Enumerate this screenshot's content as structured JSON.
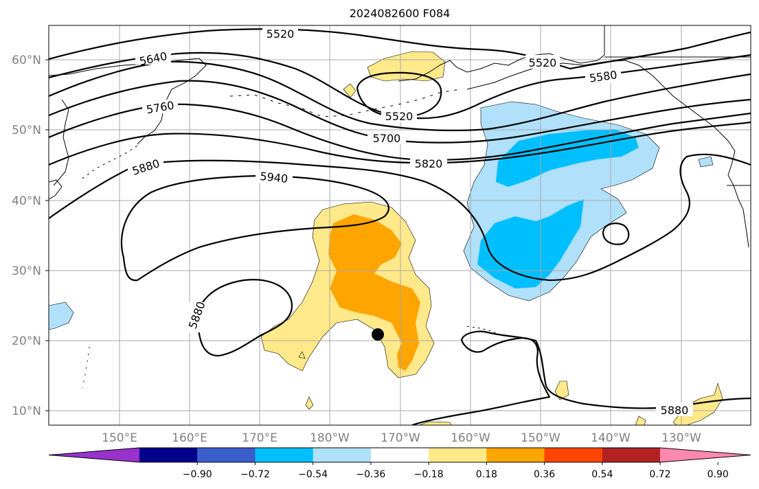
{
  "title": "2024082600 F084",
  "lat_labels": [
    "60°N",
    "50°N",
    "40°N",
    "30°N",
    "20°N",
    "10°N"
  ],
  "lon_labels": [
    "150°E",
    "160°E",
    "170°E",
    "180°W",
    "170°W",
    "160°W",
    "150°W",
    "140°W",
    "130°W"
  ],
  "contour_labels": {
    "c5520_top": "5520",
    "c5520_mid": "5520",
    "c5520_right": "5520",
    "c5580": "5580",
    "c5640": "5640",
    "c5700": "5700",
    "c5760": "5760",
    "c5820": "5820",
    "c5880_left": "5880",
    "c5880_low": "5880",
    "c5880_right": "5880",
    "c5940": "5940"
  },
  "colorbar": {
    "labels": [
      "−0.90",
      "−0.72",
      "−0.54",
      "−0.36",
      "−0.18",
      "0.18",
      "0.36",
      "0.54",
      "0.72",
      "0.90"
    ],
    "colors": [
      "#9932cc",
      "#00008b",
      "#3a5fcd",
      "#00bfff",
      "#b0e0fa",
      "#ffffff",
      "#ffe98a",
      "#ffa500",
      "#ff4500",
      "#b22222",
      "#ff88b0"
    ]
  },
  "colors": {
    "light_blue": "#b0e0fa",
    "blue": "#00bfff",
    "light_yellow": "#ffe98a",
    "orange": "#ffa500"
  }
}
